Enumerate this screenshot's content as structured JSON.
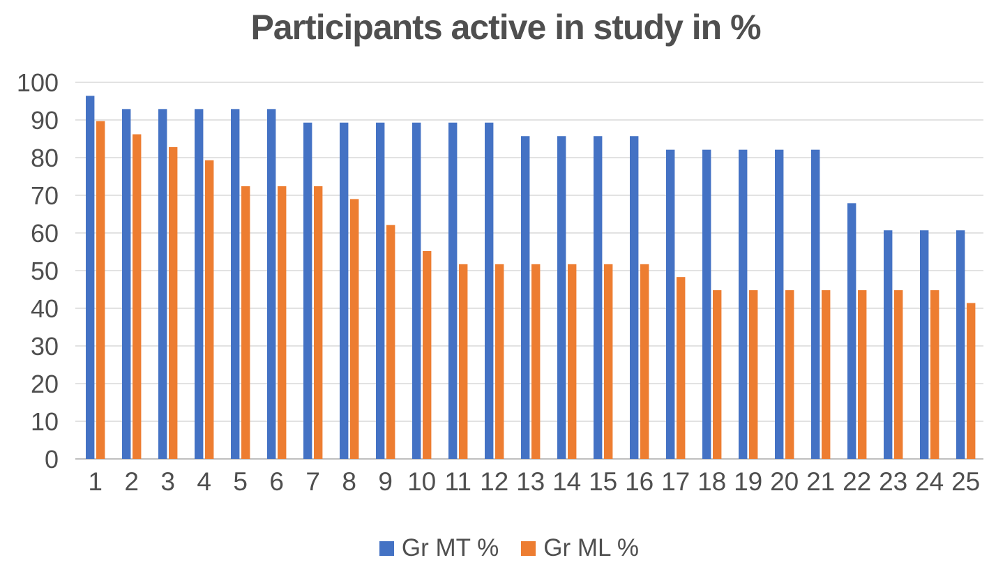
{
  "chart_data": {
    "type": "bar",
    "title": "Participants active in study in %",
    "xlabel": "",
    "ylabel": "",
    "categories": [
      "1",
      "2",
      "3",
      "4",
      "5",
      "6",
      "7",
      "8",
      "9",
      "10",
      "11",
      "12",
      "13",
      "14",
      "15",
      "16",
      "17",
      "18",
      "19",
      "20",
      "21",
      "22",
      "23",
      "24",
      "25"
    ],
    "series": [
      {
        "name": "Gr MT %",
        "color": "#4472C4",
        "values": [
          96.4,
          92.9,
          92.9,
          92.9,
          92.9,
          92.9,
          89.3,
          89.3,
          89.3,
          89.3,
          89.3,
          89.3,
          85.7,
          85.7,
          85.7,
          85.7,
          82.1,
          82.1,
          82.1,
          82.1,
          82.1,
          67.9,
          60.7,
          60.7,
          60.7
        ]
      },
      {
        "name": "Gr ML %",
        "color": "#ED7D31",
        "values": [
          89.7,
          86.2,
          82.8,
          79.3,
          72.4,
          72.4,
          72.4,
          69.0,
          62.1,
          55.2,
          51.7,
          51.7,
          51.7,
          51.7,
          51.7,
          51.7,
          48.3,
          44.8,
          44.8,
          44.8,
          44.8,
          44.8,
          44.8,
          44.8,
          41.4
        ]
      }
    ],
    "ylim": [
      0,
      100
    ],
    "yticks": [
      0,
      10,
      20,
      30,
      40,
      50,
      60,
      70,
      80,
      90,
      100
    ],
    "grid": true,
    "legend_position": "bottom"
  },
  "colors": {
    "gridline": "#d9d9d9",
    "axis_line": "#bfbfbf",
    "text": "#4f4f4f"
  }
}
